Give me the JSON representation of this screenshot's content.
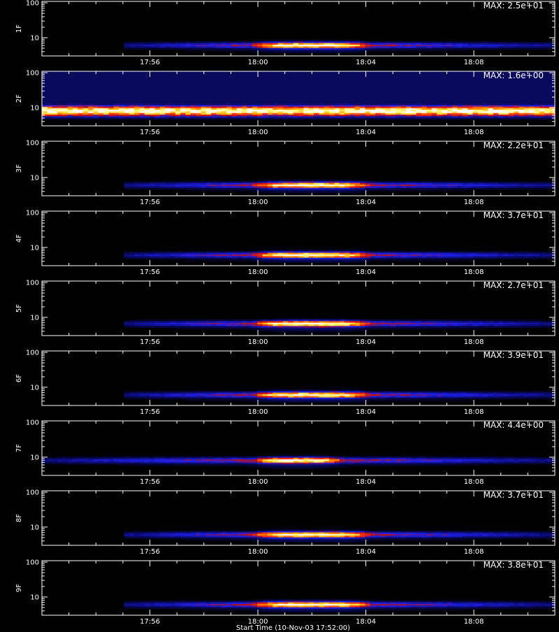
{
  "chart_data": {
    "type": "heatmap",
    "colormap": [
      "#000000",
      "#0a0a6e",
      "#1e1ee6",
      "#c01010",
      "#ff3010",
      "#ffb000",
      "#ffff80",
      "#ffffff"
    ],
    "x_axis": {
      "range": [
        "17:52",
        "18:11"
      ],
      "tick_labels": [
        "17:56",
        "18:00",
        "18:04",
        "18:08"
      ]
    },
    "y_axis": {
      "scale": "log",
      "range": [
        3,
        110
      ],
      "tick_labels": [
        "10",
        "100"
      ]
    },
    "xlabel": "Start Time (10-Nov-03 17:52:00)",
    "panels": [
      {
        "name": "1F",
        "max_label": "MAX: 2.5e+01",
        "band_y": 6,
        "core": [
          "18:00",
          "18:04"
        ],
        "tail": [
          "17:55",
          "18:11"
        ]
      },
      {
        "name": "2F",
        "max_label": "MAX: 1.6e+00",
        "band_y": 8,
        "core": [
          "17:52",
          "18:11"
        ],
        "tail": [
          "17:52",
          "18:11"
        ]
      },
      {
        "name": "3F",
        "max_label": "MAX: 2.2e+01",
        "band_y": 6,
        "core": [
          "18:00",
          "18:04"
        ],
        "tail": [
          "17:55",
          "18:11"
        ]
      },
      {
        "name": "4F",
        "max_label": "MAX: 3.7e+01",
        "band_y": 6,
        "core": [
          "18:00",
          "18:04"
        ],
        "tail": [
          "17:55",
          "18:11"
        ]
      },
      {
        "name": "5F",
        "max_label": "MAX: 2.7e+01",
        "band_y": 6.5,
        "core": [
          "18:00",
          "18:04"
        ],
        "tail": [
          "17:55",
          "18:11"
        ]
      },
      {
        "name": "6F",
        "max_label": "MAX: 3.9e+01",
        "band_y": 6,
        "core": [
          "18:00",
          "18:04"
        ],
        "tail": [
          "17:55",
          "18:11"
        ]
      },
      {
        "name": "7F",
        "max_label": "MAX: 4.4e+00",
        "band_y": 8,
        "core": [
          "18:00",
          "18:03"
        ],
        "tail": [
          "17:52",
          "18:11"
        ]
      },
      {
        "name": "8F",
        "max_label": "MAX: 3.7e+01",
        "band_y": 6,
        "core": [
          "18:00",
          "18:04"
        ],
        "tail": [
          "17:55",
          "18:11"
        ]
      },
      {
        "name": "9F",
        "max_label": "MAX: 3.8e+01",
        "band_y": 6,
        "core": [
          "18:00",
          "18:04"
        ],
        "tail": [
          "17:55",
          "18:11"
        ]
      }
    ]
  }
}
